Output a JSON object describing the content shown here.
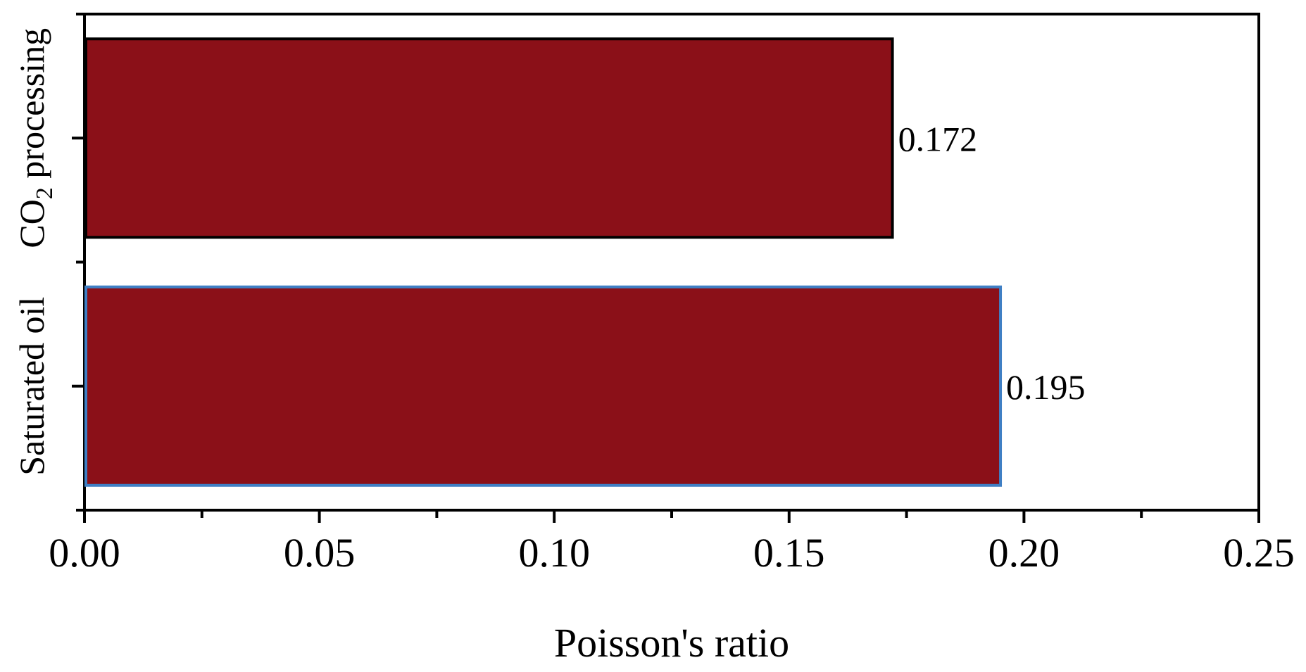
{
  "chart_data": {
    "type": "bar",
    "orientation": "horizontal",
    "title": "",
    "xlabel": "Poisson's ratio",
    "ylabel": "",
    "categories": [
      {
        "main": "CO",
        "sub": "2",
        "rest": " processing"
      },
      {
        "main": "Saturated oil",
        "sub": "",
        "rest": ""
      }
    ],
    "values": [
      0.172,
      0.195
    ],
    "data_labels": [
      "0.172",
      "0.195"
    ],
    "xlim": [
      0,
      0.25
    ],
    "xticks": [
      0.0,
      0.05,
      0.1,
      0.15,
      0.2,
      0.25
    ],
    "xtick_labels": [
      "0.00",
      "0.05",
      "0.10",
      "0.15",
      "0.20",
      "0.25"
    ],
    "grid": false,
    "legend": "none",
    "colors": {
      "bar_fill": "#8b1018",
      "bar_edges": [
        "#000000",
        "#3f7fc4"
      ],
      "axis": "#000000"
    }
  }
}
